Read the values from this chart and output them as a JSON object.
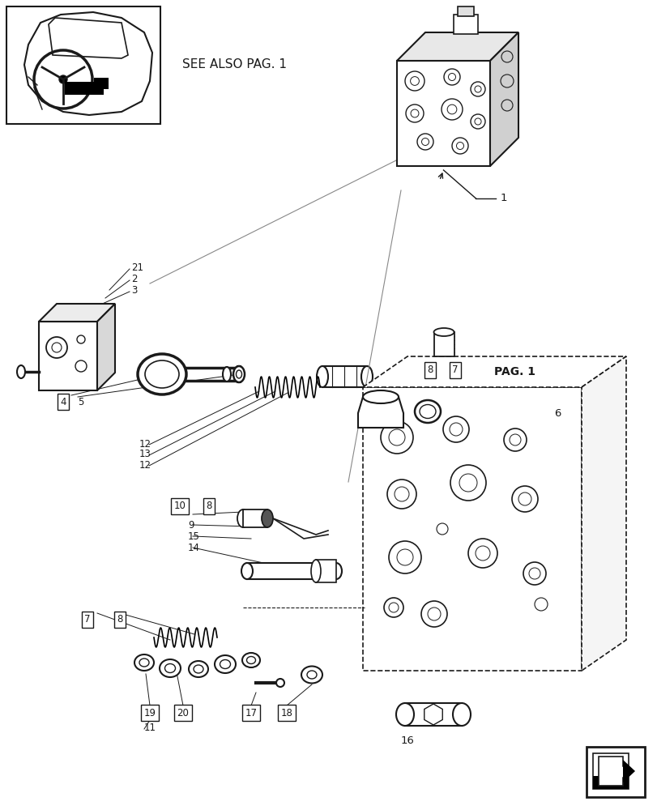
{
  "bg_color": "#ffffff",
  "line_color": "#1a1a1a",
  "see_also_text": "SEE ALSO PAG. 1",
  "pag1_text": "PAG. 1",
  "labels": [
    "1",
    "2",
    "3",
    "4",
    "5",
    "6",
    "7",
    "8",
    "9",
    "10",
    "11",
    "12",
    "13",
    "14",
    "15",
    "16",
    "17",
    "18",
    "19",
    "20",
    "21"
  ],
  "font_size_label": 8.5,
  "font_size_see_also": 11,
  "font_size_pag1": 9
}
